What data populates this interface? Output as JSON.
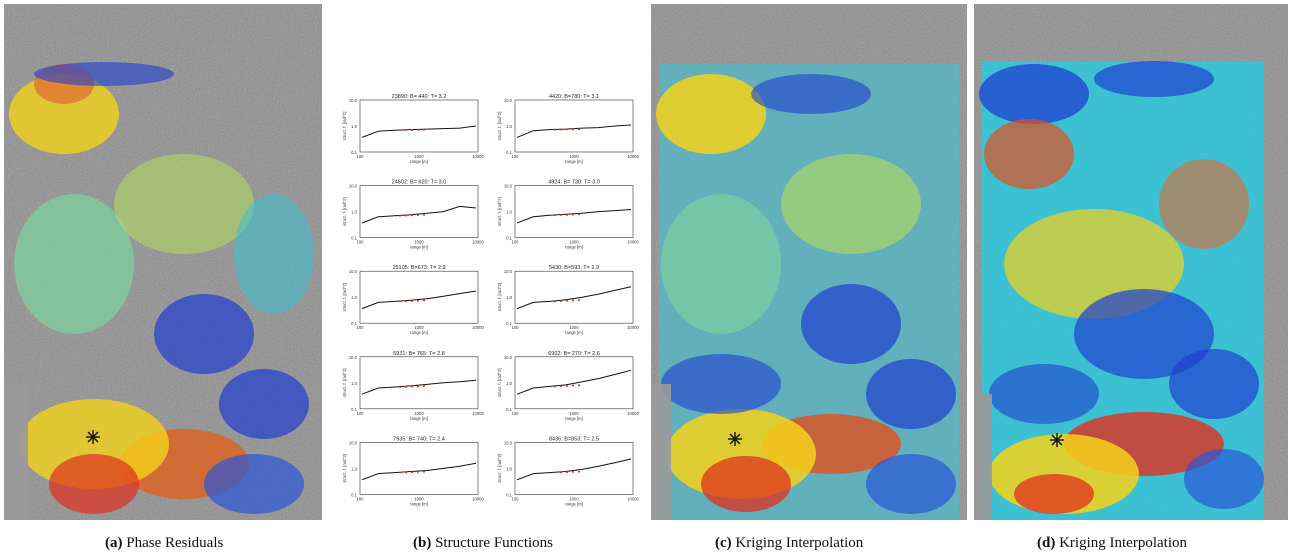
{
  "figure": {
    "panels": [
      {
        "id": "a",
        "label": "(a)",
        "caption": "Phase Residuals"
      },
      {
        "id": "b",
        "label": "(b)",
        "caption": "Structure Functions"
      },
      {
        "id": "c",
        "label": "(c)",
        "caption": "Kriging Interpolation"
      },
      {
        "id": "d",
        "label": "(d)",
        "caption": "Kriging Interpolation"
      }
    ]
  },
  "structure_functions": {
    "plots": [
      {
        "title": "23890: B= 440: T= 3.2"
      },
      {
        "title": "4420: B=780: T= 3.1"
      },
      {
        "title": "24602: B= 620: T= 3.0"
      },
      {
        "title": "4924: B= 730: T= 3.0"
      },
      {
        "title": "25105: B=673: T= 2.9"
      },
      {
        "title": "5430: B=593: T= 2.9"
      },
      {
        "title": "5931: B= 765: T= 2.8"
      },
      {
        "title": "6902: B= 270: T= 2.6"
      },
      {
        "title": "7935: B= 740: T= 2.4"
      },
      {
        "title": "8436: B=853: T= 2.5"
      }
    ],
    "ylabel": "struct. f. [rad^2]",
    "xlabel": "range [m]",
    "yticks": [
      "10.0",
      "1.0",
      "0.1"
    ],
    "xticks": [
      "100",
      "1000",
      "10000"
    ]
  },
  "colors": {
    "hot": "#e0301e",
    "warm": "#f4d21a",
    "cool": "#2fc3d6",
    "cold": "#1f3fd0",
    "fit": "#ee2020"
  }
}
